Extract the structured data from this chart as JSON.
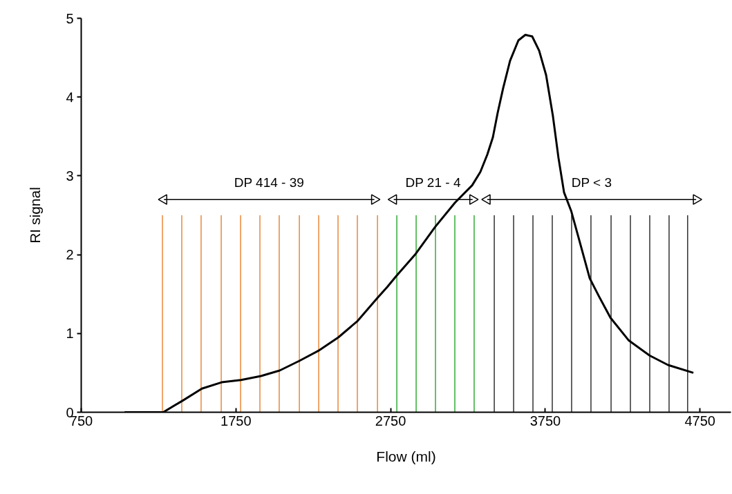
{
  "chart_data": {
    "type": "line",
    "xlabel": "Flow (ml)",
    "ylabel": "RI signal",
    "xlim": [
      750,
      4950
    ],
    "xticks": [
      750,
      1750,
      2750,
      3750,
      4750
    ],
    "ylim": [
      0,
      5
    ],
    "yticks": [
      0,
      1,
      2,
      3,
      4,
      5
    ],
    "grid": false,
    "marker": "none",
    "line_style": "solid",
    "series": [
      {
        "type": "bar",
        "x": [
          1275,
          1400,
          1525,
          1655,
          1780,
          1905,
          2030,
          2160,
          2285,
          2410,
          2535,
          2665,
          2790,
          2915,
          3040,
          3165,
          3290,
          3420,
          3545,
          3670,
          3795,
          3920,
          4045,
          4175,
          4300,
          4425,
          4550,
          4670
        ],
        "values": [
          2.5,
          2.5,
          2.5,
          2.5,
          2.5,
          2.5,
          2.5,
          2.5,
          2.5,
          2.5,
          2.5,
          2.5,
          2.5,
          2.5,
          2.5,
          2.5,
          2.5,
          2.5,
          2.5,
          2.5,
          2.5,
          2.5,
          2.5,
          2.5,
          2.5,
          2.5,
          2.5,
          2.5
        ],
        "colors": [
          "#e46c0a",
          "#e46c0a",
          "#e46c0a",
          "#e46c0a",
          "#e46c0a",
          "#e46c0a",
          "#e46c0a",
          "#e46c0a",
          "#e46c0a",
          "#e46c0a",
          "#e46c0a",
          "#e46c0a",
          "#009900",
          "#009900",
          "#009900",
          "#009900",
          "#009900",
          "#000000",
          "#000000",
          "#000000",
          "#000000",
          "#000000",
          "#000000",
          "#000000",
          "#000000",
          "#000000",
          "#000000",
          "#000000"
        ]
      },
      {
        "color": "#000000",
        "x": [
          1030,
          1200,
          1280,
          1408,
          1530,
          1658,
          1783,
          1912,
          2033,
          2158,
          2283,
          2412,
          2537,
          2664,
          2728,
          2787,
          2912,
          3037,
          3166,
          3277,
          3330,
          3375,
          3411,
          3442,
          3477,
          3522,
          3576,
          3621,
          3665,
          3710,
          3755,
          3799,
          3835,
          3871,
          3918,
          3963,
          4037,
          4097,
          4171,
          4290,
          4424,
          4543,
          4707
        ],
        "values": [
          0,
          0,
          0,
          0.15,
          0.3,
          0.38,
          0.41,
          0.46,
          0.53,
          0.65,
          0.78,
          0.95,
          1.16,
          1.45,
          1.59,
          1.73,
          2.01,
          2.35,
          2.66,
          2.88,
          3.05,
          3.27,
          3.49,
          3.8,
          4.11,
          4.46,
          4.72,
          4.79,
          4.77,
          4.59,
          4.28,
          3.76,
          3.23,
          2.79,
          2.55,
          2.23,
          1.7,
          1.47,
          1.2,
          0.91,
          0.72,
          0.6,
          0.5
        ]
      },
      {
        "color": "#000000",
        "marker": "triangle",
        "x": [
          1285,
          2645
        ],
        "values": [
          2.7,
          2.7
        ]
      },
      {
        "color": "#000000",
        "marker": "triangle",
        "x": [
          2770,
          3280
        ],
        "values": [
          2.7,
          2.7
        ]
      },
      {
        "color": "#000000",
        "marker": "triangle",
        "x": [
          3375,
          4725
        ],
        "values": [
          2.7,
          2.7
        ]
      }
    ],
    "annotations": [
      "DP 414 - 39",
      "DP 21 - 4",
      "DP < 3"
    ]
  }
}
